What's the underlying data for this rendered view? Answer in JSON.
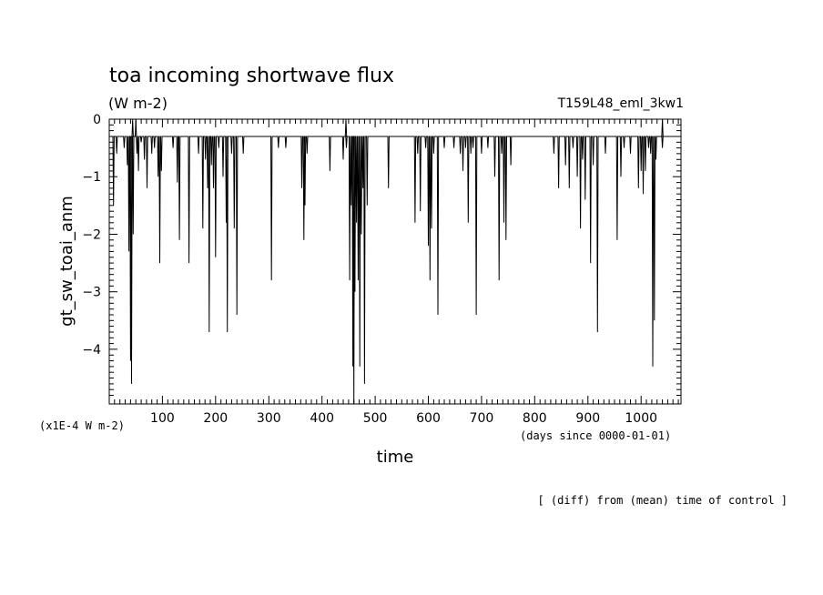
{
  "chart_data": {
    "type": "line",
    "title": "toa incoming shortwave flux",
    "units": "(W m-2)",
    "run_label": "T159L48_eml_3kw1",
    "xlabel": "time",
    "ylabel": "gt_sw_toai_anm",
    "x_units": "(days since 0000-01-01)",
    "y_scale": "(x1E-4 W m-2)",
    "footnote": "[ (diff) from (mean) time of control ]",
    "xlim": [
      0,
      1075
    ],
    "ylim": [
      -4.95,
      0.0
    ],
    "x_ticks": [
      100,
      200,
      300,
      400,
      500,
      600,
      700,
      800,
      900,
      1000
    ],
    "y_ticks": [
      0,
      -1,
      -2,
      -3,
      -4
    ],
    "x_tick_labels": [
      "100",
      "200",
      "300",
      "400",
      "500",
      "600",
      "700",
      "800",
      "900",
      "1000"
    ],
    "y_tick_labels": [
      "0",
      "−1",
      "−2",
      "−3",
      "−4"
    ],
    "baseline": -0.3,
    "series": [
      {
        "spikes": [
          [
            8,
            -1.5
          ],
          [
            14,
            -0.6
          ],
          [
            28,
            -0.5
          ],
          [
            34,
            -0.8
          ],
          [
            37,
            -2.3
          ],
          [
            40,
            -4.2
          ],
          [
            42,
            -4.6
          ],
          [
            45,
            -2.0
          ],
          [
            52,
            -0.6
          ],
          [
            55,
            -0.9
          ],
          [
            60,
            -0.4
          ],
          [
            66,
            -0.7
          ],
          [
            71,
            -1.2
          ],
          [
            80,
            -0.6
          ],
          [
            85,
            -0.5
          ],
          [
            92,
            -1.0
          ],
          [
            95,
            -2.5
          ],
          [
            98,
            -0.9
          ],
          [
            120,
            -0.5
          ],
          [
            128,
            -1.1
          ],
          [
            132,
            -2.1
          ],
          [
            150,
            -2.5
          ],
          [
            168,
            -0.6
          ],
          [
            176,
            -1.9
          ],
          [
            181,
            -0.7
          ],
          [
            185,
            -1.2
          ],
          [
            188,
            -3.7
          ],
          [
            192,
            -0.8
          ],
          [
            196,
            -1.2
          ],
          [
            200,
            -2.4
          ],
          [
            206,
            -0.5
          ],
          [
            214,
            -1.0
          ],
          [
            220,
            -1.8
          ],
          [
            222,
            -3.7
          ],
          [
            230,
            -0.6
          ],
          [
            235,
            -1.9
          ],
          [
            240,
            -3.4
          ],
          [
            252,
            -0.6
          ],
          [
            305,
            -2.8
          ],
          [
            318,
            -0.5
          ],
          [
            332,
            -0.5
          ],
          [
            362,
            -1.2
          ],
          [
            366,
            -2.1
          ],
          [
            368,
            -1.5
          ],
          [
            372,
            -0.6
          ],
          [
            415,
            -0.9
          ],
          [
            440,
            -0.7
          ],
          [
            446,
            -0.5
          ],
          [
            452,
            -2.8
          ],
          [
            455,
            -1.5
          ],
          [
            458,
            -4.3
          ],
          [
            460,
            -4.95
          ],
          [
            462,
            -3.0
          ],
          [
            465,
            -1.8
          ],
          [
            468,
            -2.8
          ],
          [
            471,
            -4.3
          ],
          [
            474,
            -2.0
          ],
          [
            477,
            -1.2
          ],
          [
            480,
            -4.6
          ],
          [
            485,
            -1.5
          ],
          [
            525,
            -1.2
          ],
          [
            575,
            -1.8
          ],
          [
            580,
            -0.6
          ],
          [
            585,
            -1.6
          ],
          [
            595,
            -0.5
          ],
          [
            600,
            -2.2
          ],
          [
            603,
            -2.8
          ],
          [
            606,
            -1.9
          ],
          [
            610,
            -0.6
          ],
          [
            618,
            -3.4
          ],
          [
            630,
            -0.5
          ],
          [
            648,
            -0.5
          ],
          [
            660,
            -0.6
          ],
          [
            665,
            -0.9
          ],
          [
            670,
            -0.5
          ],
          [
            675,
            -1.8
          ],
          [
            680,
            -0.6
          ],
          [
            684,
            -0.5
          ],
          [
            690,
            -3.4
          ],
          [
            700,
            -0.6
          ],
          [
            712,
            -0.5
          ],
          [
            725,
            -1.0
          ],
          [
            733,
            -2.8
          ],
          [
            738,
            -0.6
          ],
          [
            742,
            -1.8
          ],
          [
            746,
            -2.1
          ],
          [
            755,
            -0.8
          ],
          [
            836,
            -0.6
          ],
          [
            845,
            -1.2
          ],
          [
            858,
            -0.8
          ],
          [
            865,
            -1.2
          ],
          [
            872,
            -0.5
          ],
          [
            880,
            -1.0
          ],
          [
            886,
            -1.9
          ],
          [
            890,
            -0.7
          ],
          [
            895,
            -1.4
          ],
          [
            905,
            -2.5
          ],
          [
            910,
            -0.8
          ],
          [
            918,
            -3.7
          ],
          [
            933,
            -0.6
          ],
          [
            955,
            -2.1
          ],
          [
            962,
            -1.0
          ],
          [
            968,
            -0.5
          ],
          [
            980,
            -0.6
          ],
          [
            995,
            -1.2
          ],
          [
            1000,
            -0.9
          ],
          [
            1004,
            -1.3
          ],
          [
            1008,
            -0.9
          ],
          [
            1014,
            -0.5
          ],
          [
            1018,
            -0.6
          ],
          [
            1022,
            -4.3
          ],
          [
            1025,
            -3.5
          ],
          [
            1028,
            -0.7
          ],
          [
            1040,
            -0.5
          ]
        ],
        "peaks": [
          [
            44,
            0.0
          ],
          [
            50,
            0.0
          ],
          [
            445,
            0.0
          ],
          [
            1040,
            0.0
          ]
        ]
      }
    ]
  }
}
